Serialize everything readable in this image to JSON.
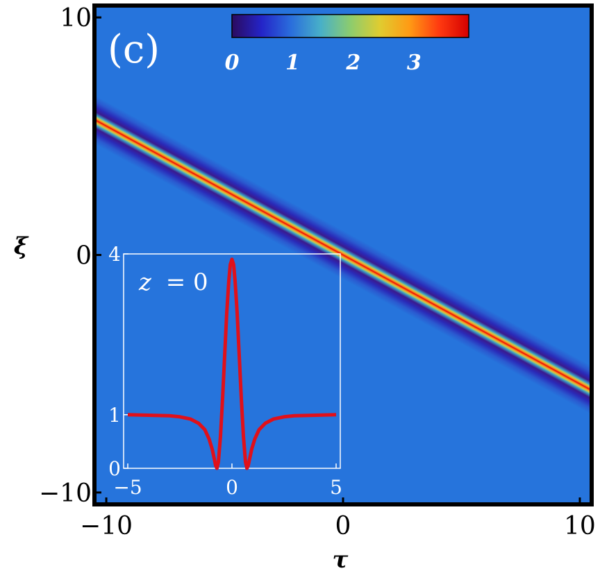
{
  "chart_data": [
    {
      "type": "heatmap",
      "panel_label": "(c)",
      "xlabel": "τ",
      "ylabel": "ξ",
      "xlim": [
        -10.5,
        10.5
      ],
      "ylim": [
        -10.5,
        10.5
      ],
      "x_ticks": [
        "-10",
        "0",
        "10"
      ],
      "y_ticks": [
        "10",
        "0",
        "-10"
      ],
      "colorbar": {
        "range": [
          0,
          3.9
        ],
        "ticks": [
          "0",
          "1",
          "2",
          "3"
        ],
        "colors": [
          "#2b0a5e",
          "#2424c8",
          "#2a6edc",
          "#48b0c8",
          "#8ccc6e",
          "#e0cc30",
          "#ff9a14",
          "#ff3a10",
          "#d40000"
        ]
      },
      "background_value": 1,
      "soliton_track": {
        "tau": [
          -10.5,
          10.5
        ],
        "xi": [
          5.7,
          -5.7
        ]
      },
      "peak_value": 3.9,
      "colors": {
        "background": "#2674dc",
        "frame": "#000000",
        "text_on_plot": "#ffffff"
      }
    },
    {
      "type": "line",
      "title_var": "z",
      "title_eq": "= 0",
      "xlim": [
        -5,
        5
      ],
      "ylim": [
        0,
        4
      ],
      "x_ticks": [
        "-5",
        "0",
        "5"
      ],
      "y_ticks": [
        "4",
        "1",
        "0"
      ],
      "series": [
        {
          "color": "#e0101a"
        }
      ],
      "curve_x": [
        -5,
        -4,
        -3,
        -2.5,
        -2,
        -1.6,
        -1.3,
        -1.1,
        -0.95,
        -0.85,
        -0.78,
        -0.72,
        -0.65,
        -0.55,
        -0.45,
        -0.35,
        -0.25,
        -0.15,
        -0.08,
        0,
        0.08,
        0.15,
        0.25,
        0.35,
        0.45,
        0.55,
        0.65,
        0.72,
        0.78,
        0.85,
        0.95,
        1.1,
        1.3,
        1.6,
        2,
        2.5,
        3,
        4,
        5
      ],
      "curve_y": [
        1.0,
        0.99,
        0.98,
        0.96,
        0.92,
        0.84,
        0.72,
        0.55,
        0.36,
        0.18,
        0.05,
        0.0,
        0.12,
        0.6,
        1.3,
        2.1,
        2.9,
        3.5,
        3.8,
        3.9,
        3.8,
        3.5,
        2.9,
        2.1,
        1.3,
        0.6,
        0.12,
        0.0,
        0.05,
        0.18,
        0.36,
        0.55,
        0.72,
        0.84,
        0.92,
        0.96,
        0.98,
        0.99,
        1.0
      ]
    }
  ]
}
